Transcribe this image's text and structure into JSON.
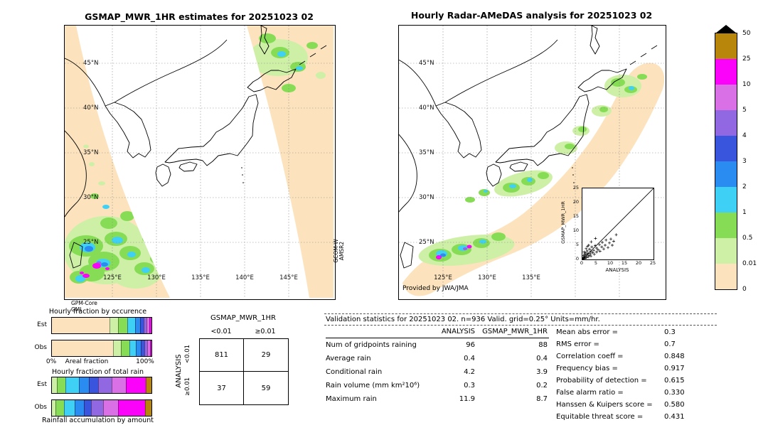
{
  "left_map": {
    "title": "GSMAP_MWR_1HR estimates for 20251023 02",
    "lat_labels": [
      "45°N",
      "40°N",
      "35°N",
      "30°N",
      "25°N"
    ],
    "lon_labels": [
      "125°E",
      "130°E",
      "135°E",
      "140°E",
      "145°E"
    ],
    "sensor_label_line1": "GPM-Core",
    "sensor_label_line2": "GMI",
    "side_sensor_line1": "GCOM-W",
    "side_sensor_line2": "AMSR2"
  },
  "right_map": {
    "title": "Hourly Radar-AMeDAS analysis for 20251023 02",
    "lat_labels": [
      "45°N",
      "40°N",
      "35°N",
      "30°N",
      "25°N"
    ],
    "lon_labels": [
      "125°E",
      "130°E",
      "135°E"
    ],
    "credit": "Provided by JWA/JMA"
  },
  "scatter_inset": {
    "ylabel": "GSMAP_MWR_1HR",
    "xlabel": "ANALYSIS",
    "ticks": [
      "0",
      "5",
      "10",
      "15",
      "20",
      "25"
    ]
  },
  "fractions": {
    "occurrence_title": "Hourly fraction by occurence",
    "row_labels": [
      "Est",
      "Obs"
    ],
    "axis_left": "0%",
    "axis_center": "Areal fraction",
    "axis_right": "100%",
    "total_title": "Hourly fraction of total rain",
    "bottom_label": "Rainfall accumulation by amount"
  },
  "contingency": {
    "title": "GSMAP_MWR_1HR",
    "side_label": "ANALYSIS",
    "col_headers": [
      "<0.01",
      "≥0.01"
    ],
    "row_headers": [
      "<0.01",
      "≥0.01"
    ]
  },
  "stats": {
    "title": "Validation statistics for 20251023 02. n=936 Valid. grid=0.25° Units=mm/hr.",
    "col_headers": [
      "ANALYSIS",
      "GSMAP_MWR_1HR"
    ]
  },
  "chart_data": [
    {
      "id": "contingency",
      "type": "table",
      "title": "GSMAP_MWR_1HR",
      "row_axis": "ANALYSIS",
      "columns": [
        "<0.01",
        "≥0.01"
      ],
      "rows": [
        [
          "<0.01",
          811,
          29
        ],
        [
          "≥0.01",
          37,
          59
        ]
      ]
    },
    {
      "id": "validation",
      "type": "table",
      "title": "Validation statistics for 20251023 02. n=936 Valid. grid=0.25° Units=mm/hr.",
      "columns": [
        "ANALYSIS",
        "GSMAP_MWR_1HR"
      ],
      "rows": [
        [
          "Num of gridpoints raining",
          "96",
          "88"
        ],
        [
          "Average rain",
          "0.4",
          "0.4"
        ],
        [
          "Conditional rain",
          "4.2",
          "3.9"
        ],
        [
          "Rain volume (mm km²10⁶)",
          "0.3",
          "0.2"
        ],
        [
          "Maximum rain",
          "11.9",
          "8.7"
        ]
      ]
    },
    {
      "id": "skill",
      "type": "table",
      "rows": [
        [
          "Mean abs error =",
          "0.3"
        ],
        [
          "RMS error =",
          "0.7"
        ],
        [
          "Correlation coeff =",
          "0.848"
        ],
        [
          "Frequency bias =",
          "0.917"
        ],
        [
          "Probability of detection =",
          "0.615"
        ],
        [
          "False alarm ratio =",
          "0.330"
        ],
        [
          "Hanssen & Kuipers score =",
          "0.580"
        ],
        [
          "Equitable threat score =",
          "0.431"
        ]
      ]
    },
    {
      "id": "colorbar",
      "type": "heatmap",
      "title": "Rain rate color scale (mm/hr)",
      "levels_top_to_bottom": [
        "50",
        "25",
        "10",
        "5",
        "4",
        "3",
        "2",
        "1",
        "0.5",
        "0.01",
        "0"
      ],
      "colors_top_to_bottom": [
        "#b8860b",
        "#fb02fb",
        "#d970e6",
        "#9168e2",
        "#3a55dd",
        "#2a8cf0",
        "#3fd0f5",
        "#86dd55",
        "#cdf0a6",
        "#fce3bd"
      ],
      "overflow_color": "#000000"
    },
    {
      "id": "occurrence_bars",
      "type": "bar",
      "title": "Hourly fraction by occurence",
      "stacked": true,
      "unit": "% areal fraction",
      "categories": [
        "Est",
        "Obs"
      ],
      "est": [
        {
          "color": "#fce3bd",
          "pct": 61
        },
        {
          "color": "#cdf0a6",
          "pct": 9
        },
        {
          "color": "#86dd55",
          "pct": 9
        },
        {
          "color": "#3fd0f5",
          "pct": 7
        },
        {
          "color": "#2a8cf0",
          "pct": 5
        },
        {
          "color": "#3a55dd",
          "pct": 3
        },
        {
          "color": "#9168e2",
          "pct": 2.5
        },
        {
          "color": "#d970e6",
          "pct": 2
        },
        {
          "color": "#fb02fb",
          "pct": 1.5
        }
      ],
      "obs": [
        {
          "color": "#fce3bd",
          "pct": 65
        },
        {
          "color": "#cdf0a6",
          "pct": 8
        },
        {
          "color": "#86dd55",
          "pct": 8
        },
        {
          "color": "#3fd0f5",
          "pct": 6
        },
        {
          "color": "#2a8cf0",
          "pct": 4.5
        },
        {
          "color": "#3a55dd",
          "pct": 3
        },
        {
          "color": "#9168e2",
          "pct": 2.5
        },
        {
          "color": "#d970e6",
          "pct": 2
        },
        {
          "color": "#fb02fb",
          "pct": 1
        }
      ]
    },
    {
      "id": "totalrain_bars",
      "type": "bar",
      "title": "Hourly fraction of total rain",
      "stacked": true,
      "unit": "% of total rain by amount class",
      "categories": [
        "Est",
        "Obs"
      ],
      "est": [
        {
          "color": "#cdf0a6",
          "pct": 5
        },
        {
          "color": "#86dd55",
          "pct": 9
        },
        {
          "color": "#3fd0f5",
          "pct": 13
        },
        {
          "color": "#2a8cf0",
          "pct": 10
        },
        {
          "color": "#3a55dd",
          "pct": 9
        },
        {
          "color": "#9168e2",
          "pct": 14
        },
        {
          "color": "#d970e6",
          "pct": 14
        },
        {
          "color": "#fb02fb",
          "pct": 21
        },
        {
          "color": "#b8860b",
          "pct": 5
        }
      ],
      "obs": [
        {
          "color": "#cdf0a6",
          "pct": 4
        },
        {
          "color": "#86dd55",
          "pct": 8
        },
        {
          "color": "#3fd0f5",
          "pct": 11
        },
        {
          "color": "#2a8cf0",
          "pct": 9
        },
        {
          "color": "#3a55dd",
          "pct": 7
        },
        {
          "color": "#9168e2",
          "pct": 12
        },
        {
          "color": "#d970e6",
          "pct": 15
        },
        {
          "color": "#fb02fb",
          "pct": 28
        },
        {
          "color": "#b8860b",
          "pct": 6
        }
      ]
    },
    {
      "id": "inset_scatter",
      "type": "scatter",
      "xlabel": "ANALYSIS",
      "ylabel": "GSMAP_MWR_1HR",
      "xlim": [
        0,
        25
      ],
      "ylim": [
        0,
        25
      ],
      "points": [
        [
          0.1,
          0.1
        ],
        [
          0.2,
          0.4
        ],
        [
          0.3,
          0.2
        ],
        [
          0.4,
          0.8
        ],
        [
          0.5,
          0.3
        ],
        [
          0.5,
          1.4
        ],
        [
          0.7,
          0.6
        ],
        [
          0.8,
          1.9
        ],
        [
          1,
          0.4
        ],
        [
          1,
          1.1
        ],
        [
          1.2,
          2.3
        ],
        [
          1.4,
          0.7
        ],
        [
          1.5,
          1.6
        ],
        [
          1.7,
          3
        ],
        [
          2,
          0.9
        ],
        [
          2,
          2.1
        ],
        [
          2.3,
          1.4
        ],
        [
          2.5,
          3.6
        ],
        [
          2.8,
          2
        ],
        [
          3,
          1.2
        ],
        [
          3,
          2.9
        ],
        [
          3.3,
          4.4
        ],
        [
          3.6,
          2.4
        ],
        [
          4,
          3.2
        ],
        [
          4.2,
          1.8
        ],
        [
          4.5,
          4.9
        ],
        [
          5,
          2.6
        ],
        [
          5,
          4
        ],
        [
          5.5,
          3.4
        ],
        [
          6,
          5.2
        ],
        [
          6.2,
          2.9
        ],
        [
          6.8,
          4.4
        ],
        [
          7,
          6
        ],
        [
          7.5,
          3.7
        ],
        [
          8,
          5
        ],
        [
          8.3,
          6.8
        ],
        [
          9,
          4.2
        ],
        [
          9.5,
          5.8
        ],
        [
          10,
          7.2
        ],
        [
          10.5,
          5
        ],
        [
          11,
          6.4
        ],
        [
          11.9,
          8.7
        ],
        [
          0.6,
          2.6
        ],
        [
          1.3,
          3.8
        ],
        [
          2.2,
          5
        ],
        [
          3.1,
          6.2
        ],
        [
          4.6,
          7.4
        ],
        [
          1.8,
          4.6
        ]
      ]
    }
  ]
}
